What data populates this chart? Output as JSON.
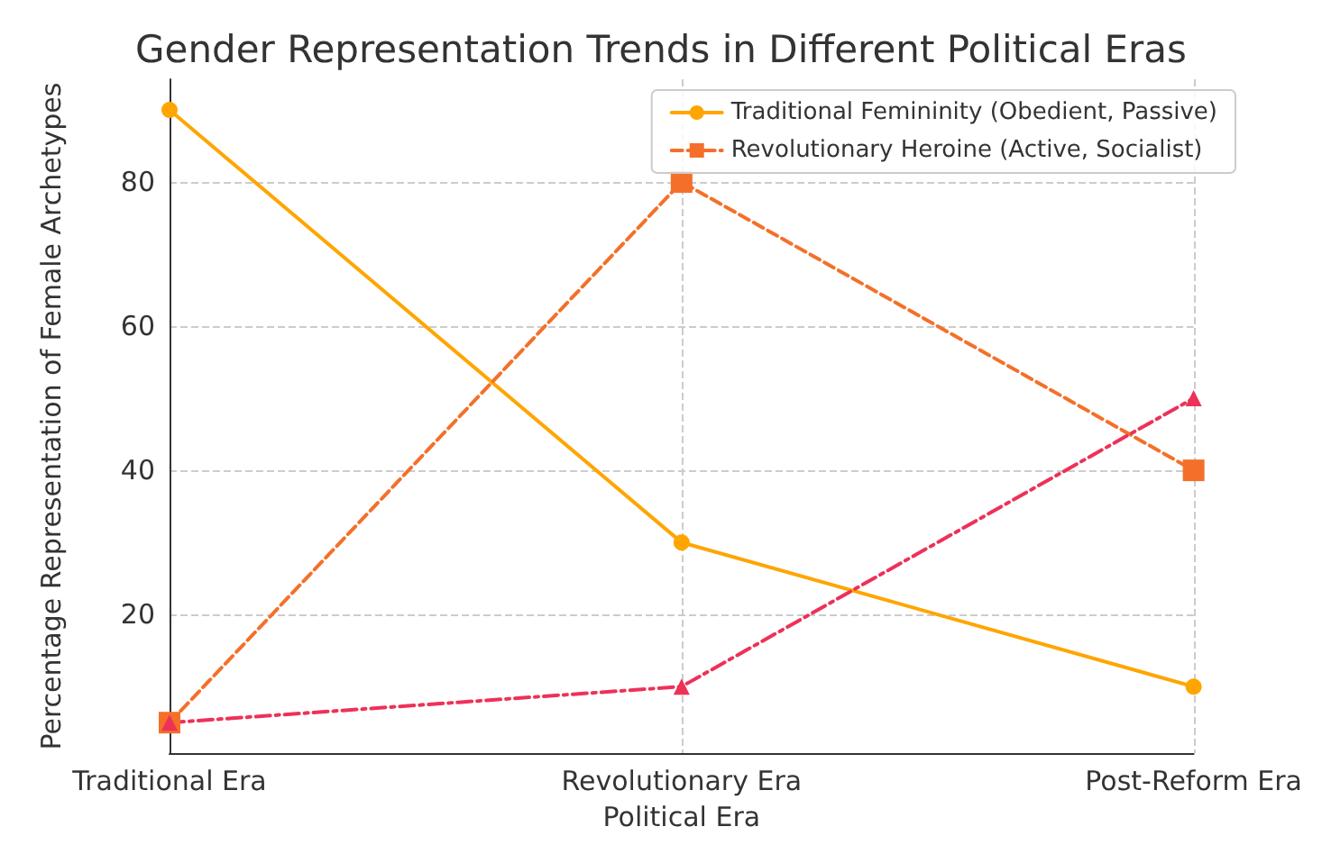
{
  "chart_data": {
    "type": "line",
    "title": "Gender Representation Trends in Different Political Eras",
    "xlabel": "Political Era",
    "ylabel": "Percentage Representation of Female Archetypes",
    "categories": [
      "Traditional Era",
      "Revolutionary Era",
      "Post-Reform Era"
    ],
    "series": [
      {
        "name": "Traditional Femininity (Obedient, Passive)",
        "color": "#ffa500",
        "values": [
          90,
          30,
          10
        ],
        "marker": "circle",
        "line_style": "solid"
      },
      {
        "name": "Revolutionary Heroine (Active, Socialist)",
        "color": "#f4702a",
        "values": [
          5,
          80,
          40
        ],
        "marker": "square",
        "line_style": "dashed"
      },
      {
        "color": "#ee3158",
        "values": [
          5,
          10,
          50
        ],
        "marker": "triangle",
        "line_style": "dashdot"
      }
    ],
    "ylim": [
      0.75,
      94.25
    ],
    "yticks": [
      20,
      40,
      60,
      80
    ],
    "grid": true,
    "legend": "top right"
  }
}
